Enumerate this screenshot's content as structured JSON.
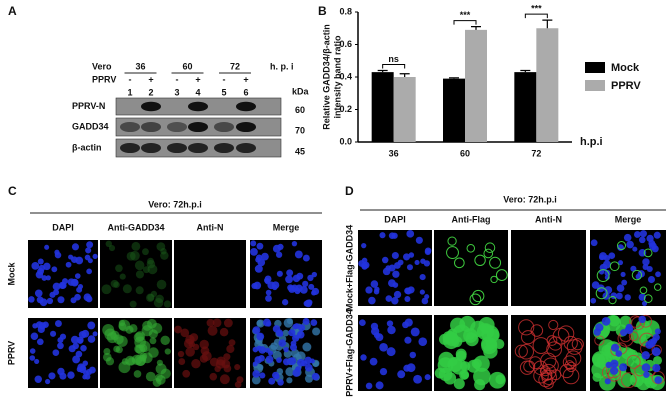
{
  "panel_a": {
    "label": "A",
    "cell_line": "Vero",
    "timepoints": [
      "36",
      "60",
      "72"
    ],
    "time_unit": "h. p. i",
    "infection_label": "PPRV",
    "infection": [
      "-",
      "+",
      "-",
      "+",
      "-",
      "+"
    ],
    "lanes": [
      "1",
      "2",
      "3",
      "4",
      "5",
      "6"
    ],
    "kda_label": "kDa",
    "blots": [
      {
        "name": "PPRV-N",
        "kda": "60"
      },
      {
        "name": "GADD34",
        "kda": "70"
      },
      {
        "name": "β-actin",
        "kda": "45"
      }
    ]
  },
  "chart_data": {
    "type": "bar",
    "label": "B",
    "ylabel": [
      "Relative GADD34/β-actin",
      "intensity band ratio"
    ],
    "xlabel": "h.p.i",
    "categories": [
      "36",
      "60",
      "72"
    ],
    "series": [
      {
        "name": "Mock",
        "color": "#000000",
        "values": [
          0.43,
          0.39,
          0.43
        ],
        "errors": [
          0.01,
          0.005,
          0.01
        ]
      },
      {
        "name": "PPRV",
        "color": "#ababab",
        "values": [
          0.4,
          0.69,
          0.7
        ],
        "errors": [
          0.02,
          0.02,
          0.05
        ]
      }
    ],
    "ylim": [
      0,
      0.8
    ],
    "yticks": [
      {
        "value": 0,
        "label": "0.0"
      },
      0.2,
      0.4,
      0.6,
      0.8
    ],
    "annotations": [
      "ns",
      "***",
      "***"
    ],
    "legend": "right"
  },
  "panel_c": {
    "label": "C",
    "title": "Vero: 72h.p.i",
    "columns": [
      "DAPI",
      "Anti-GADD34",
      "Anti-N",
      "Merge"
    ],
    "rows": [
      "Mock",
      "PPRV"
    ]
  },
  "panel_d": {
    "label": "D",
    "title": "Vero: 72h.p.i",
    "columns": [
      "DAPI",
      "Anti-Flag",
      "Anti-N",
      "Merge"
    ],
    "rows": [
      "Mock+Flag-GADD34",
      "PPRV+Flag-GADD34"
    ]
  }
}
